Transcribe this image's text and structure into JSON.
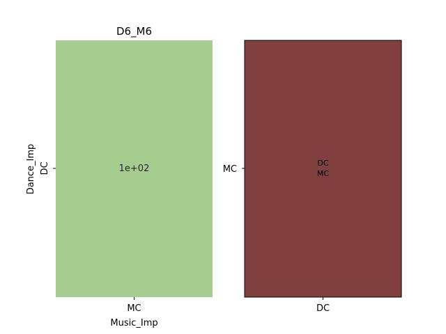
{
  "chart_data": [
    {
      "type": "heatmap",
      "title": "D6_M6",
      "xlabel": "Music_Imp",
      "ylabel": "Dance_Imp",
      "x_ticks": [
        "MC"
      ],
      "y_ticks": [
        "DC"
      ],
      "cells": [
        {
          "x": "MC",
          "y": "DC",
          "value": 100,
          "annotation": "1e+02",
          "color": "#a6cd8f"
        }
      ]
    },
    {
      "type": "heatmap",
      "title": "",
      "xlabel": "",
      "ylabel": "",
      "x_ticks": [
        "DC"
      ],
      "y_ticks": [
        "MC"
      ],
      "cells": [
        {
          "x": "DC",
          "y": "MC",
          "annotation_lines": [
            "DC",
            "MC"
          ],
          "color": "#814040"
        }
      ]
    }
  ]
}
